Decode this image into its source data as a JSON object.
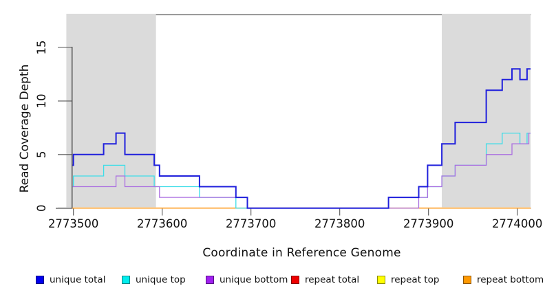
{
  "figure": {
    "x_axis_title": "Coordinate in Reference Genome",
    "y_axis_title": "Read Coverage Depth"
  },
  "chart_data": {
    "type": "line",
    "subtype": "step-after-coverage",
    "title": "",
    "xlabel": "Coordinate in Reference Genome",
    "ylabel": "Read Coverage Depth",
    "xlim": [
      2773499,
      2774015
    ],
    "ylim": [
      0,
      18
    ],
    "x_ticks": [
      "2773500",
      "2773600",
      "2773700",
      "2773800",
      "2773900",
      "2774000"
    ],
    "x_tick_values": [
      2773500,
      2773600,
      2773700,
      2773800,
      2773900,
      2774000
    ],
    "y_ticks": [
      "0",
      "5",
      "10",
      "15"
    ],
    "y_tick_values": [
      0,
      5,
      10,
      15
    ],
    "grid": false,
    "plot_background": "#ffffff",
    "shaded_region_color": "#dbdbdb",
    "shaded_regions": [
      {
        "name": "left-repeat-region",
        "x_start": 2773492,
        "x_end": 2773593
      },
      {
        "name": "right-repeat-region",
        "x_start": 2773915,
        "x_end": 2774015
      }
    ],
    "series": [
      {
        "name": "unique total",
        "color": "#2020dc",
        "legend_color": "#0000ee",
        "line_width": 2,
        "steps": [
          [
            2773499,
            4
          ],
          [
            2773500,
            5
          ],
          [
            2773534,
            6
          ],
          [
            2773548,
            7
          ],
          [
            2773558,
            5
          ],
          [
            2773591,
            4
          ],
          [
            2773597,
            3
          ],
          [
            2773642,
            2
          ],
          [
            2773683,
            1
          ],
          [
            2773696,
            0
          ],
          [
            2773855,
            1
          ],
          [
            2773889,
            2
          ],
          [
            2773899,
            4
          ],
          [
            2773915,
            6
          ],
          [
            2773930,
            8
          ],
          [
            2773965,
            11
          ],
          [
            2773983,
            12
          ],
          [
            2773994,
            13
          ],
          [
            2774003,
            12
          ],
          [
            2774011,
            13
          ]
        ]
      },
      {
        "name": "unique top",
        "color": "#3cdde8",
        "legend_color": "#00eeee",
        "line_width": 1.3,
        "steps": [
          [
            2773499,
            2
          ],
          [
            2773500,
            3
          ],
          [
            2773534,
            4
          ],
          [
            2773558,
            3
          ],
          [
            2773591,
            2
          ],
          [
            2773642,
            1
          ],
          [
            2773683,
            0
          ],
          [
            2773855,
            1
          ],
          [
            2773899,
            2
          ],
          [
            2773915,
            3
          ],
          [
            2773930,
            4
          ],
          [
            2773965,
            6
          ],
          [
            2773983,
            7
          ],
          [
            2774003,
            6
          ],
          [
            2774011,
            7
          ]
        ]
      },
      {
        "name": "unique bottom",
        "color": "#ab6fe0",
        "legend_color": "#a020f0",
        "line_width": 1.3,
        "steps": [
          [
            2773499,
            2
          ],
          [
            2773548,
            3
          ],
          [
            2773558,
            2
          ],
          [
            2773597,
            1
          ],
          [
            2773696,
            0
          ],
          [
            2773889,
            1
          ],
          [
            2773899,
            2
          ],
          [
            2773915,
            3
          ],
          [
            2773930,
            4
          ],
          [
            2773965,
            5
          ],
          [
            2773994,
            6
          ],
          [
            2774013,
            7
          ]
        ]
      },
      {
        "name": "repeat total",
        "color": "#ee0000",
        "legend_color": "#ee0000",
        "line_width": 1.3,
        "steps": [
          [
            2773499,
            0
          ]
        ]
      },
      {
        "name": "repeat top",
        "color": "#ffff00",
        "legend_color": "#ffff00",
        "line_width": 1.3,
        "steps": [
          [
            2773499,
            0
          ]
        ]
      },
      {
        "name": "repeat bottom",
        "color": "#ffa028",
        "legend_color": "#ff9900",
        "line_width": 1.6,
        "steps": [
          [
            2773499,
            0
          ]
        ]
      }
    ],
    "draw_order": [
      "repeat top",
      "repeat total",
      "repeat bottom",
      "unique top",
      "unique bottom",
      "unique total"
    ],
    "legend": {
      "position": "bottom",
      "entries": [
        "unique total",
        "unique top",
        "unique bottom",
        "repeat total",
        "repeat top",
        "repeat bottom"
      ]
    }
  }
}
